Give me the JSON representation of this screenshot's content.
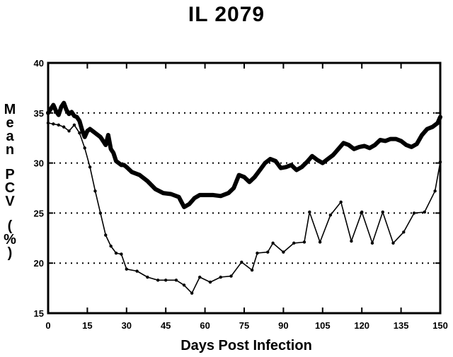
{
  "chart_data": {
    "type": "line",
    "title": "IL 2079",
    "xlabel": "Days Post Infection",
    "ylabel": "Mean PCV (%)",
    "xlim": [
      0,
      150
    ],
    "ylim": [
      15,
      40
    ],
    "x_ticks": [
      0,
      15,
      30,
      45,
      60,
      75,
      90,
      105,
      120,
      135,
      150
    ],
    "y_ticks": [
      15,
      20,
      25,
      30,
      35,
      40
    ],
    "grid": "horizontal dotted",
    "series": [
      {
        "style": "thick",
        "color": "#000000",
        "x": [
          0,
          1,
          2,
          3,
          4,
          5,
          6,
          7,
          8,
          9,
          10,
          11,
          12,
          13,
          14,
          15,
          16,
          17,
          18,
          19,
          20,
          21,
          22,
          23,
          24,
          25,
          26,
          27,
          28,
          29,
          30,
          32,
          35,
          38,
          41,
          44,
          47,
          50,
          52,
          54,
          56,
          58,
          60,
          63,
          66,
          69,
          71,
          73,
          75,
          77,
          79,
          81,
          83,
          85,
          87,
          89,
          91,
          93,
          95,
          97,
          99,
          101,
          103,
          105,
          107,
          109,
          111,
          113,
          115,
          117,
          119,
          121,
          123,
          125,
          127,
          129,
          131,
          133,
          135,
          137,
          139,
          141,
          143,
          145,
          147,
          149,
          150
        ],
        "y": [
          35.0,
          35.4,
          35.8,
          35.2,
          34.8,
          35.6,
          36.0,
          35.3,
          34.9,
          35.1,
          34.7,
          34.6,
          34.2,
          33.3,
          32.6,
          33.2,
          33.4,
          33.2,
          33.0,
          32.8,
          32.6,
          32.2,
          31.8,
          32.8,
          31.4,
          31.0,
          30.2,
          30.0,
          29.8,
          29.8,
          29.6,
          29.1,
          28.8,
          28.2,
          27.4,
          27.0,
          26.9,
          26.6,
          25.6,
          25.9,
          26.5,
          26.8,
          26.8,
          26.8,
          26.7,
          27.0,
          27.5,
          28.8,
          28.6,
          28.1,
          28.6,
          29.3,
          30.0,
          30.4,
          30.2,
          29.5,
          29.6,
          29.8,
          29.3,
          29.6,
          30.1,
          30.7,
          30.3,
          30.0,
          30.4,
          30.8,
          31.4,
          32.0,
          31.8,
          31.4,
          31.6,
          31.7,
          31.5,
          31.8,
          32.3,
          32.2,
          32.4,
          32.4,
          32.2,
          31.8,
          31.6,
          31.9,
          32.8,
          33.4,
          33.6,
          34.0,
          34.6
        ]
      },
      {
        "style": "thin-marked",
        "color": "#000000",
        "x": [
          0,
          2,
          4,
          6,
          8,
          10,
          12,
          14,
          16,
          18,
          20,
          22,
          24,
          26,
          28,
          30,
          34,
          38,
          42,
          45,
          49,
          52,
          55,
          58,
          62,
          66,
          70,
          74,
          78,
          80,
          84,
          86,
          90,
          94,
          98,
          100,
          104,
          108,
          112,
          116,
          120,
          124,
          128,
          132,
          136,
          140,
          144,
          148,
          150
        ],
        "y": [
          34.0,
          33.9,
          33.8,
          33.6,
          33.2,
          33.8,
          33.0,
          31.5,
          29.6,
          27.2,
          25.0,
          22.8,
          21.7,
          21.0,
          20.9,
          19.4,
          19.2,
          18.6,
          18.3,
          18.3,
          18.3,
          17.8,
          17.0,
          18.6,
          18.1,
          18.6,
          18.7,
          20.1,
          19.3,
          21.0,
          21.1,
          22.0,
          21.1,
          22.0,
          22.1,
          25.1,
          22.1,
          24.8,
          26.1,
          22.2,
          25.1,
          22.0,
          25.1,
          22.0,
          23.1,
          25.0,
          25.1,
          27.2,
          30.1
        ]
      }
    ]
  }
}
